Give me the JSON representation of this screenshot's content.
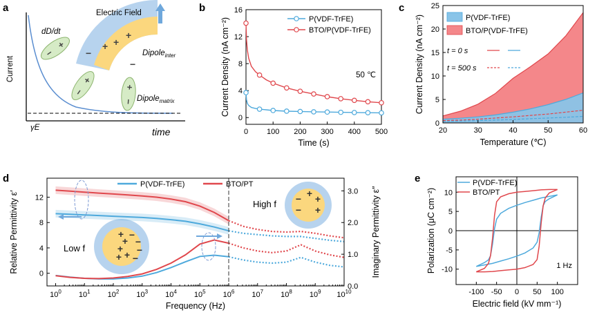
{
  "colors": {
    "pvdf": "#4DA9DC",
    "bto": "#E0474C",
    "pvdf_fill": "#89C4E8",
    "bto_fill": "#F4878A",
    "schematic_curve": "#5B8ED0",
    "dipole_green": "#D6EBC6",
    "dipole_green_stroke": "#8CB46E",
    "particle_yellow": "#FBD77E",
    "shell_blue": "#B7D3EE",
    "arrow_blue": "#6FA8DC"
  },
  "panel_a": {
    "letter": "a",
    "ylabel": "Current",
    "xlabel": "time",
    "curve_label": "dD/dt",
    "baseline_label": "γE",
    "field_label": "Electric Field",
    "dipole_inter_label": "Dipole",
    "dipole_inter_sub": "inter",
    "dipole_matrix_label": "Dipole",
    "dipole_matrix_sub": "matrix",
    "plus": "+",
    "minus": "−"
  },
  "panel_d": {
    "low_f_label": "Low f",
    "high_f_label": "High f"
  },
  "chart_data": [
    {
      "panel": "b",
      "type": "line",
      "xlabel": "Time (s)",
      "ylabel": "Current Density (nA cm⁻²)",
      "xlim": [
        0,
        500
      ],
      "ylim": [
        -1,
        16
      ],
      "xticks": [
        0,
        100,
        200,
        300,
        400,
        500
      ],
      "yticks": [
        0,
        4,
        8,
        12,
        16
      ],
      "annotation": "50 ℃",
      "legend_position": "top-right",
      "series": [
        {
          "name": "P(VDF-TrFE)",
          "color": "#4DA9DC",
          "x": [
            0,
            2,
            5,
            10,
            20,
            35,
            50,
            75,
            100,
            150,
            200,
            250,
            300,
            350,
            400,
            450,
            500
          ],
          "y": [
            3.7,
            2.6,
            2.1,
            1.8,
            1.5,
            1.35,
            1.25,
            1.15,
            1.05,
            0.95,
            0.9,
            0.85,
            0.82,
            0.78,
            0.75,
            0.72,
            0.7
          ],
          "markers_x": [
            0,
            50,
            100,
            150,
            200,
            250,
            300,
            350,
            400,
            450,
            500
          ],
          "markers_y": [
            3.7,
            1.25,
            1.05,
            0.95,
            0.9,
            0.85,
            0.82,
            0.78,
            0.75,
            0.72,
            0.7
          ]
        },
        {
          "name": "BTO/P(VDF-TrFE)",
          "color": "#E0474C",
          "x": [
            0,
            2,
            5,
            10,
            20,
            35,
            50,
            75,
            100,
            150,
            200,
            250,
            300,
            350,
            400,
            450,
            500
          ],
          "y": [
            14.0,
            11.5,
            10.0,
            8.8,
            7.6,
            6.8,
            6.3,
            5.6,
            5.1,
            4.4,
            3.9,
            3.5,
            3.1,
            2.8,
            2.55,
            2.35,
            2.2
          ],
          "markers_x": [
            0,
            50,
            100,
            150,
            200,
            250,
            300,
            350,
            400,
            450,
            500
          ],
          "markers_y": [
            14.0,
            6.3,
            5.1,
            4.4,
            3.9,
            3.5,
            3.1,
            2.8,
            2.55,
            2.35,
            2.2
          ]
        }
      ]
    },
    {
      "panel": "c",
      "type": "area",
      "xlabel": "Temperature (℃)",
      "ylabel": "Current Density (nA cm⁻²)",
      "xlim": [
        20,
        60
      ],
      "ylim": [
        0,
        25
      ],
      "xticks": [
        20,
        30,
        40,
        50,
        60
      ],
      "yticks": [
        0,
        5,
        10,
        15,
        20,
        25
      ],
      "legend_position": "top-left",
      "line_legend": {
        "t0_label": "t = 0 s",
        "t500_label": "t = 500 s"
      },
      "x": [
        20,
        25,
        30,
        35,
        40,
        45,
        50,
        55,
        60
      ],
      "series": [
        {
          "name": "P(VDF-TrFE)",
          "color": "#4DA9DC",
          "t0": [
            0.8,
            1.0,
            1.3,
            1.7,
            2.3,
            3.0,
            3.9,
            5.0,
            6.4
          ],
          "t500": [
            0.3,
            0.4,
            0.5,
            0.6,
            0.75,
            0.9,
            1.05,
            1.2,
            1.4
          ]
        },
        {
          "name": "BTO/P(VDF-TrFE)",
          "color": "#E0474C",
          "t0": [
            1.5,
            2.5,
            4.0,
            6.3,
            9.5,
            12.0,
            14.7,
            18.5,
            23.5
          ],
          "t500": [
            0.5,
            0.6,
            0.8,
            1.05,
            1.3,
            1.6,
            1.9,
            2.3,
            2.7
          ]
        }
      ]
    },
    {
      "panel": "d",
      "type": "line",
      "xlabel": "Frequency (Hz)",
      "ylabel": "Relative Permittivity ε′",
      "ylabel_right": "Imaginary Permittivity ε″",
      "xscale": "log",
      "xlim_exp": [
        -0.3,
        10
      ],
      "ylim": [
        -2,
        15
      ],
      "ylim_right": [
        0,
        3.4
      ],
      "xticks_exp": [
        0,
        1,
        2,
        3,
        4,
        5,
        6,
        7,
        8,
        9,
        10
      ],
      "yticks": [
        0,
        4,
        8,
        12
      ],
      "yticks_right": [
        0.0,
        1.0,
        2.0,
        3.0
      ],
      "legend_position": "top-center",
      "dashed_boundary_exp": 6,
      "series": [
        {
          "name": "P(VDF-TrFE)",
          "color": "#4DA9DC",
          "quantity": "eps_real",
          "x_exp": [
            0,
            0.5,
            1,
            1.5,
            2,
            2.5,
            3,
            3.5,
            4,
            4.5,
            5,
            5.5,
            6,
            6.5,
            7,
            7.5,
            8,
            8.5,
            9,
            9.5,
            10
          ],
          "y": [
            9.4,
            9.3,
            9.2,
            9.1,
            9.0,
            8.9,
            8.8,
            8.65,
            8.45,
            8.2,
            7.8,
            7.3,
            6.7,
            6.3,
            6.1,
            5.9,
            5.8,
            5.8,
            5.5,
            5.2,
            5.0
          ]
        },
        {
          "name": "BTO/PT",
          "color": "#E0474C",
          "quantity": "eps_real",
          "x_exp": [
            0,
            0.5,
            1,
            1.5,
            2,
            2.5,
            3,
            3.5,
            4,
            4.5,
            5,
            5.5,
            6,
            6.5,
            7,
            7.5,
            8,
            8.5,
            9,
            9.5,
            10
          ],
          "y": [
            13.1,
            12.95,
            12.8,
            12.65,
            12.5,
            12.35,
            12.2,
            12.0,
            11.7,
            11.3,
            10.6,
            9.6,
            8.3,
            7.4,
            6.9,
            6.6,
            6.5,
            6.6,
            6.3,
            5.9,
            5.6
          ]
        },
        {
          "name": "P(VDF-TrFE)",
          "color": "#4DA9DC",
          "quantity": "eps_imag",
          "x_exp": [
            0,
            0.5,
            1,
            1.5,
            2,
            2.5,
            3,
            3.5,
            4,
            4.5,
            5,
            5.5,
            6,
            6.5,
            7,
            7.5,
            8,
            8.5,
            9,
            9.5,
            10
          ],
          "y": [
            0.33,
            0.28,
            0.24,
            0.22,
            0.22,
            0.25,
            0.31,
            0.42,
            0.58,
            0.76,
            0.93,
            0.97,
            0.92,
            0.82,
            0.75,
            0.72,
            0.75,
            0.9,
            0.75,
            0.65,
            0.6
          ]
        },
        {
          "name": "BTO/PT",
          "color": "#E0474C",
          "quantity": "eps_imag",
          "x_exp": [
            0,
            0.5,
            1,
            1.5,
            2,
            2.5,
            3,
            3.5,
            4,
            4.5,
            5,
            5.5,
            6,
            6.5,
            7,
            7.5,
            8,
            8.5,
            9,
            9.5,
            10
          ],
          "y": [
            0.32,
            0.27,
            0.24,
            0.23,
            0.25,
            0.3,
            0.38,
            0.52,
            0.72,
            0.98,
            1.32,
            1.45,
            1.35,
            1.2,
            1.1,
            1.05,
            1.1,
            1.3,
            1.1,
            0.98,
            0.9
          ]
        }
      ]
    },
    {
      "panel": "e",
      "type": "line",
      "xlabel": "Electric field (kV mm⁻¹)",
      "ylabel": "Polarization (μC cm⁻²)",
      "xlim": [
        -150,
        150
      ],
      "ylim": [
        -14,
        14
      ],
      "xticks": [
        -100,
        -50,
        0,
        50,
        100
      ],
      "yticks": [
        -10,
        -5,
        0,
        5,
        10
      ],
      "annotation": "1 Hz",
      "legend_position": "top-left",
      "series": [
        {
          "name": "P(VDF-TrFE)",
          "color": "#4DA9DC",
          "upper_x": [
            100,
            80,
            60,
            40,
            20,
            0,
            -20,
            -40,
            -50,
            -55,
            -60,
            -65,
            -70,
            -80,
            -100
          ],
          "upper_y": [
            9.3,
            8.9,
            8.5,
            7.9,
            7.3,
            6.6,
            5.8,
            4.5,
            3.0,
            0.5,
            -3.5,
            -6.5,
            -7.6,
            -8.3,
            -9.3
          ],
          "lower_x": [
            -100,
            -80,
            -60,
            -40,
            -20,
            0,
            20,
            40,
            50,
            55,
            60,
            65,
            70,
            80,
            100
          ],
          "lower_y": [
            -9.3,
            -8.9,
            -8.5,
            -7.9,
            -7.3,
            -6.6,
            -5.8,
            -4.5,
            -3.0,
            -0.5,
            3.5,
            6.5,
            7.6,
            8.3,
            9.3
          ]
        },
        {
          "name": "BTO/PT",
          "color": "#E0474C",
          "upper_x": [
            100,
            80,
            60,
            40,
            20,
            0,
            -20,
            -40,
            -50,
            -55,
            -60,
            -65,
            -70,
            -80,
            -100
          ],
          "upper_y": [
            10.7,
            10.7,
            10.6,
            10.4,
            10.2,
            10.0,
            9.6,
            8.8,
            7.5,
            4.0,
            -2.0,
            -6.5,
            -8.5,
            -9.8,
            -10.7
          ],
          "lower_x": [
            -100,
            -80,
            -60,
            -40,
            -20,
            0,
            20,
            40,
            50,
            55,
            60,
            65,
            70,
            80,
            100
          ],
          "lower_y": [
            -10.7,
            -10.7,
            -10.6,
            -10.4,
            -10.2,
            -10.0,
            -9.6,
            -8.8,
            -7.5,
            -4.0,
            2.0,
            6.5,
            8.5,
            9.8,
            10.7
          ]
        }
      ]
    }
  ]
}
